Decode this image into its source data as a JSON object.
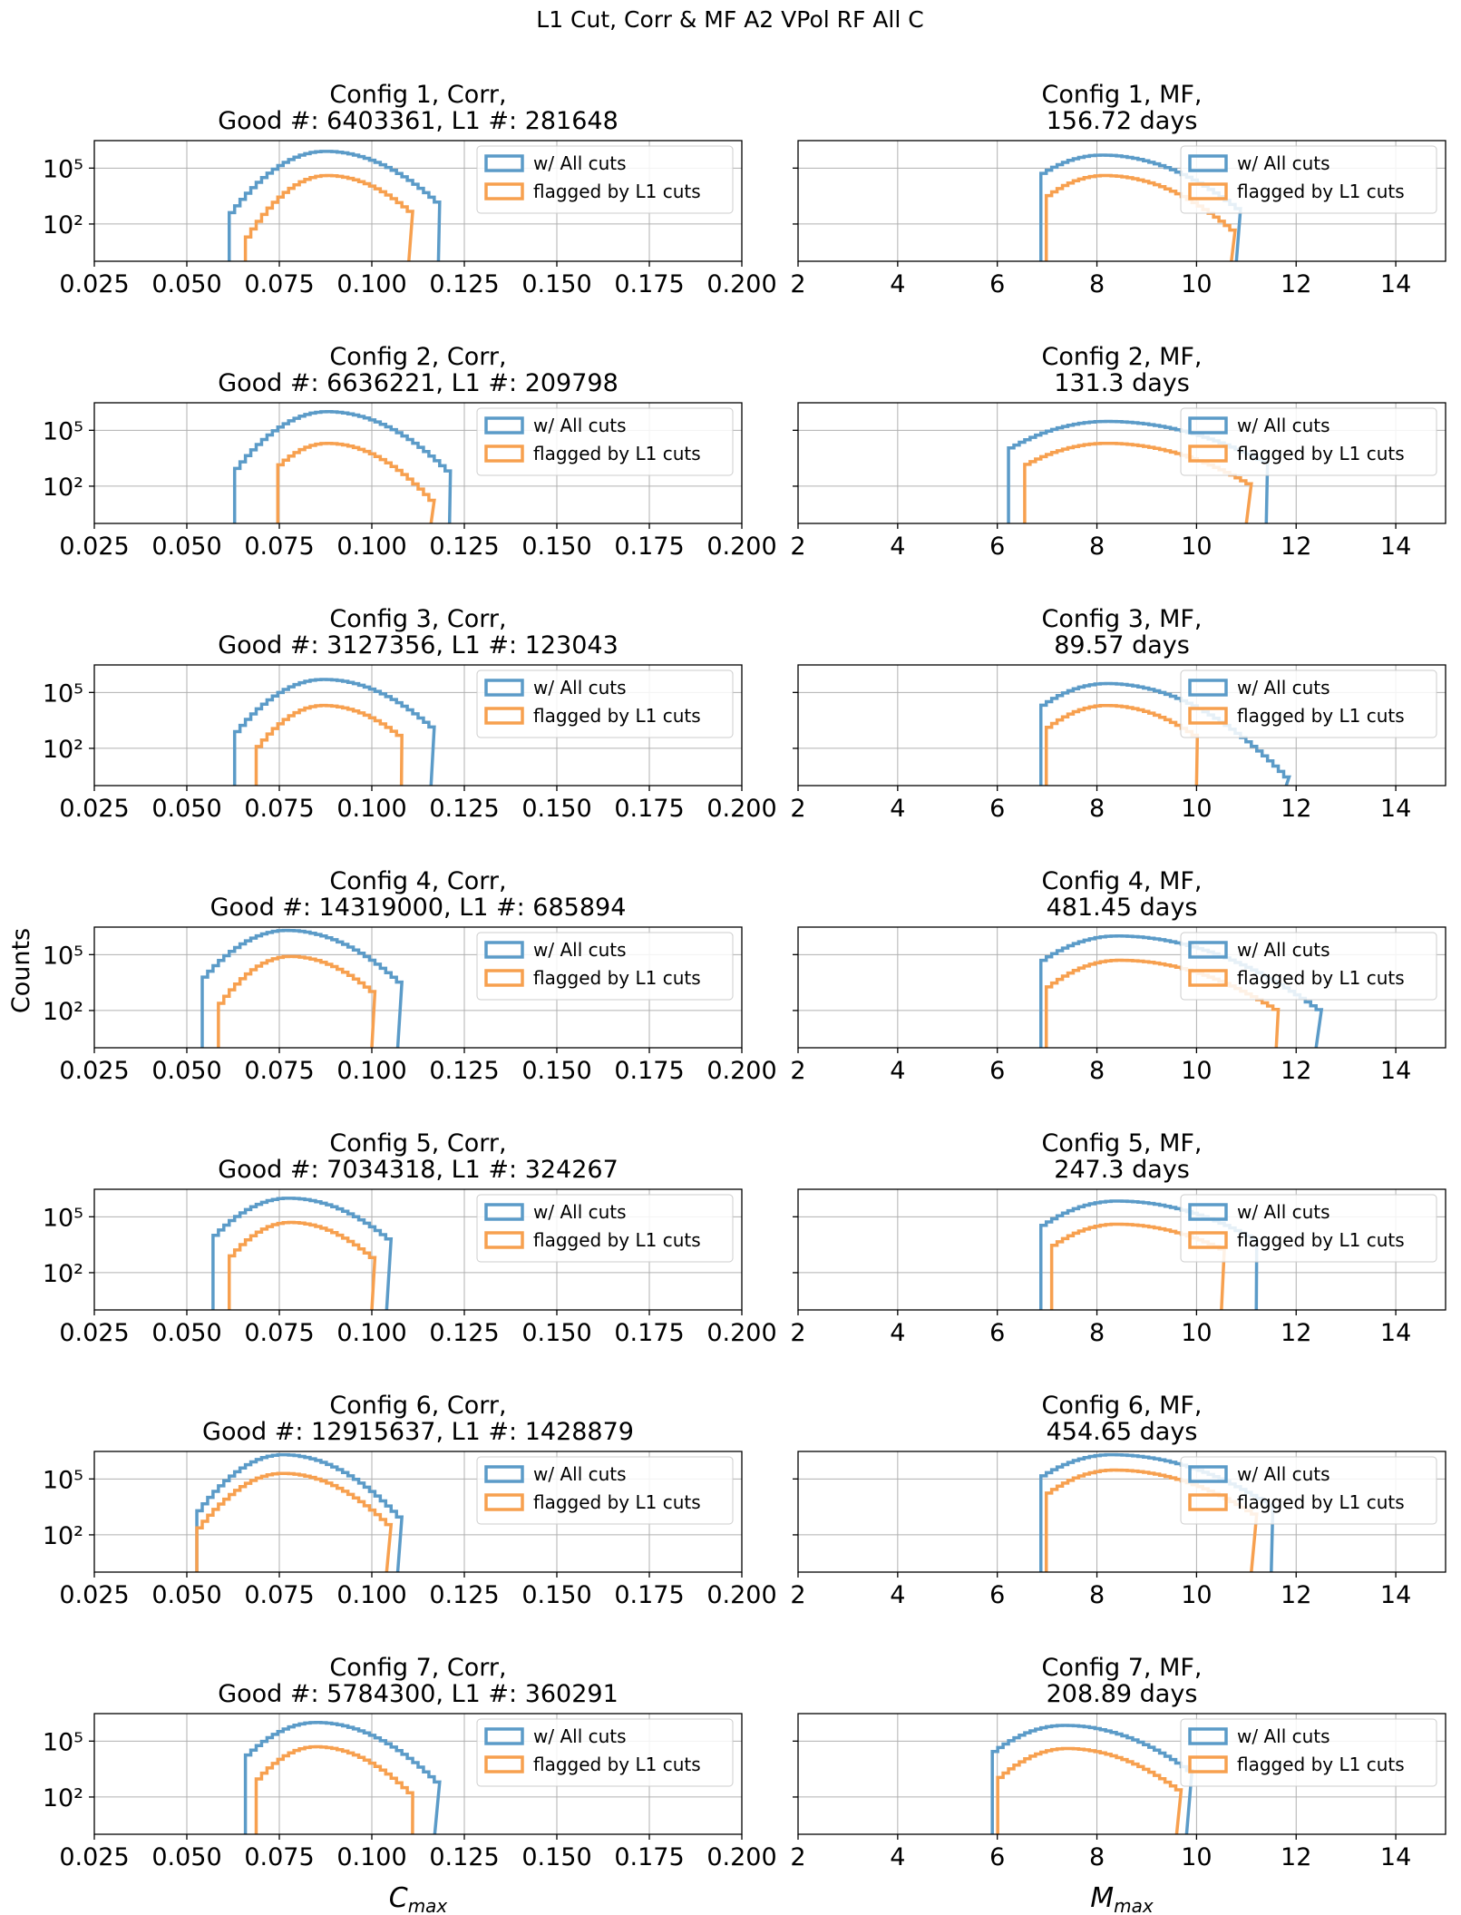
{
  "figure": {
    "suptitle": "L1 Cut, Corr & MF A2 VPol RF All C",
    "ylabel": "Counts"
  },
  "chart_data": {
    "type": "histogram-grid",
    "title": "L1 Cut, Corr & MF A2 VPol RF All C",
    "ylabel": "Counts",
    "yscale": "log",
    "legend": {
      "location": "top-right",
      "entries": [
        {
          "label": "w/ All cuts",
          "color": "#5b9bc8"
        },
        {
          "label": "flagged by L1 cuts",
          "color": "#f7a04f"
        }
      ]
    },
    "colors": {
      "all": "#5b9bc8",
      "l1": "#f7a04f"
    },
    "y_ticks": [
      {
        "value": 100,
        "label": "10²"
      },
      {
        "value": 100000,
        "label": "10⁵"
      }
    ],
    "ylim": [
      1,
      3000000
    ],
    "columns": [
      {
        "name": "Corr",
        "xlabel": "C_max",
        "xlim": [
          0.025,
          0.2
        ],
        "x_ticks": [
          0.025,
          0.05,
          0.075,
          0.1,
          0.125,
          0.15,
          0.175,
          0.2
        ],
        "x_tick_labels": [
          "0.025",
          "0.050",
          "0.075",
          "0.100",
          "0.125",
          "0.150",
          "0.175",
          "0.200"
        ]
      },
      {
        "name": "MF",
        "xlabel": "M_max",
        "xlim": [
          2,
          15
        ],
        "x_ticks": [
          2,
          4,
          6,
          8,
          10,
          12,
          14
        ],
        "x_tick_labels": [
          "2",
          "4",
          "6",
          "8",
          "10",
          "12",
          "14"
        ]
      }
    ],
    "panels": [
      {
        "row": 1,
        "col": 0,
        "title": [
          "Config 1, Corr,",
          "Good #: 6403361, L1 #: 281648"
        ],
        "all": {
          "x0": 0.062,
          "x1": 0.118,
          "peak_x": 0.0875,
          "peak": 800000,
          "sigma_l": 0.0065,
          "sigma_r": 0.0085,
          "tail_bump": {
            "x": 0.068,
            "value": 12
          }
        },
        "l1": {
          "x0": 0.067,
          "x1": 0.11,
          "peak_x": 0.088,
          "peak": 40000,
          "sigma_l": 0.0055,
          "sigma_r": 0.0075
        }
      },
      {
        "row": 1,
        "col": 1,
        "title": [
          "Config 1, MF,",
          "156.72 days"
        ],
        "all": {
          "x0": 6.9,
          "x1": 10.8,
          "peak_x": 8.1,
          "peak": 500000,
          "sigma_l": 0.55,
          "sigma_r": 0.75
        },
        "l1": {
          "x0": 7.0,
          "x1": 10.7,
          "peak_x": 8.15,
          "peak": 40000,
          "sigma_l": 0.5,
          "sigma_r": 0.7
        }
      },
      {
        "row": 2,
        "col": 0,
        "title": [
          "Config 2, Corr,",
          "Good #: 6636221, L1 #: 209798"
        ],
        "all": {
          "x0": 0.063,
          "x1": 0.121,
          "peak_x": 0.088,
          "peak": 1000000,
          "sigma_l": 0.0065,
          "sigma_r": 0.0085,
          "tail_bump": {
            "x": 0.069,
            "value": 10
          }
        },
        "l1": {
          "x0": 0.075,
          "x1": 0.116,
          "peak_x": 0.088,
          "peak": 20000,
          "sigma_l": 0.0055,
          "sigma_r": 0.0075
        }
      },
      {
        "row": 2,
        "col": 1,
        "title": [
          "Config 2, MF,",
          "131.3 days"
        ],
        "all": {
          "x0": 6.3,
          "x1": 11.4,
          "peak_x": 8.2,
          "peak": 300000,
          "sigma_l": 0.75,
          "sigma_r": 1.0
        },
        "l1": {
          "x0": 6.6,
          "x1": 11.0,
          "peak_x": 8.2,
          "peak": 20000,
          "sigma_l": 0.7,
          "sigma_r": 0.9
        }
      },
      {
        "row": 3,
        "col": 0,
        "title": [
          "Config 3, Corr,",
          "Good #: 3127356, L1 #: 123043"
        ],
        "all": {
          "x0": 0.064,
          "x1": 0.116,
          "peak_x": 0.087,
          "peak": 500000,
          "sigma_l": 0.0065,
          "sigma_r": 0.0085
        },
        "l1": {
          "x0": 0.07,
          "x1": 0.108,
          "peak_x": 0.087,
          "peak": 20000,
          "sigma_l": 0.0055,
          "sigma_r": 0.0075
        }
      },
      {
        "row": 3,
        "col": 1,
        "title": [
          "Config 3, MF,",
          "89.57 days"
        ],
        "all": {
          "x0": 6.9,
          "x1": 11.8,
          "peak_x": 8.2,
          "peak": 300000,
          "sigma_l": 0.55,
          "sigma_r": 0.75
        },
        "l1": {
          "x0": 7.0,
          "x1": 10.0,
          "peak_x": 8.2,
          "peak": 20000,
          "sigma_l": 0.5,
          "sigma_r": 0.65
        }
      },
      {
        "row": 4,
        "col": 0,
        "title": [
          "Config 4, Corr,",
          "Good #: 14319000, L1 #: 685894"
        ],
        "all": {
          "x0": 0.055,
          "x1": 0.107,
          "peak_x": 0.077,
          "peak": 2000000,
          "sigma_l": 0.0065,
          "sigma_r": 0.0085
        },
        "l1": {
          "x0": 0.06,
          "x1": 0.1,
          "peak_x": 0.078,
          "peak": 80000,
          "sigma_l": 0.0055,
          "sigma_r": 0.0075
        }
      },
      {
        "row": 4,
        "col": 1,
        "title": [
          "Config 4, MF,",
          "481.45 days"
        ],
        "all": {
          "x0": 6.9,
          "x1": 12.4,
          "peak_x": 8.4,
          "peak": 1000000,
          "sigma_l": 0.6,
          "sigma_r": 0.95
        },
        "l1": {
          "x0": 7.0,
          "x1": 11.6,
          "peak_x": 8.45,
          "peak": 50000,
          "sigma_l": 0.55,
          "sigma_r": 0.9
        }
      },
      {
        "row": 5,
        "col": 0,
        "title": [
          "Config 5, Corr,",
          "Good #: 7034318, L1 #: 324267"
        ],
        "all": {
          "x0": 0.058,
          "x1": 0.104,
          "peak_x": 0.0775,
          "peak": 1000000,
          "sigma_l": 0.0065,
          "sigma_r": 0.0085
        },
        "l1": {
          "x0": 0.062,
          "x1": 0.1,
          "peak_x": 0.078,
          "peak": 50000,
          "sigma_l": 0.0055,
          "sigma_r": 0.0075
        }
      },
      {
        "row": 5,
        "col": 1,
        "title": [
          "Config 5, MF,",
          "247.3 days"
        ],
        "all": {
          "x0": 6.9,
          "x1": 11.2,
          "peak_x": 8.4,
          "peak": 700000,
          "sigma_l": 0.6,
          "sigma_r": 0.9
        },
        "l1": {
          "x0": 7.1,
          "x1": 10.5,
          "peak_x": 8.4,
          "peak": 40000,
          "sigma_l": 0.55,
          "sigma_r": 0.85
        }
      },
      {
        "row": 6,
        "col": 0,
        "title": [
          "Config 6, Corr,",
          "Good #: 12915637, L1 #: 1428879"
        ],
        "all": {
          "x0": 0.053,
          "x1": 0.107,
          "peak_x": 0.076,
          "peak": 2000000,
          "sigma_l": 0.006,
          "sigma_r": 0.008,
          "bump": {
            "x": 0.062,
            "value": 2500,
            "sigma": 0.004
          }
        },
        "l1": {
          "x0": 0.054,
          "x1": 0.104,
          "peak_x": 0.076,
          "peak": 200000,
          "sigma_l": 0.006,
          "sigma_r": 0.008,
          "bump": {
            "x": 0.061,
            "value": 400,
            "sigma": 0.004
          }
        }
      },
      {
        "row": 6,
        "col": 1,
        "title": [
          "Config 6, MF,",
          "454.65 days"
        ],
        "all": {
          "x0": 6.9,
          "x1": 11.5,
          "peak_x": 8.3,
          "peak": 2000000,
          "sigma_l": 0.6,
          "sigma_r": 0.9
        },
        "l1": {
          "x0": 7.0,
          "x1": 11.1,
          "peak_x": 8.35,
          "peak": 300000,
          "sigma_l": 0.55,
          "sigma_r": 0.85
        }
      },
      {
        "row": 7,
        "col": 0,
        "title": [
          "Config 7, Corr,",
          "Good #: 5784300, L1 #: 360291"
        ],
        "all": {
          "x0": 0.066,
          "x1": 0.117,
          "peak_x": 0.085,
          "peak": 1000000,
          "sigma_l": 0.0065,
          "sigma_r": 0.0085
        },
        "l1": {
          "x0": 0.07,
          "x1": 0.111,
          "peak_x": 0.085,
          "peak": 50000,
          "sigma_l": 0.0055,
          "sigma_r": 0.0075
        }
      },
      {
        "row": 7,
        "col": 1,
        "title": [
          "Config 7, MF,",
          "208.89 days"
        ],
        "all": {
          "x0": 6.0,
          "x1": 9.8,
          "peak_x": 7.35,
          "peak": 700000,
          "sigma_l": 0.55,
          "sigma_r": 0.75
        },
        "l1": {
          "x0": 6.1,
          "x1": 9.6,
          "peak_x": 7.4,
          "peak": 40000,
          "sigma_l": 0.5,
          "sigma_r": 0.7
        }
      }
    ]
  }
}
